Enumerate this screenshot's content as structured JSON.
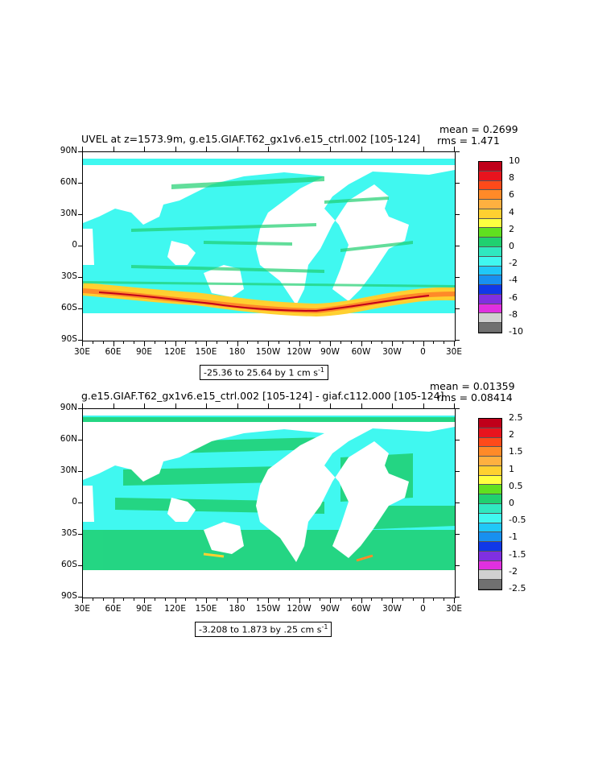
{
  "panels": [
    {
      "title": "UVEL at z=1573.9m, g.e15.GIAF.T62_gx1v6.e15_ctrl.002 [105-124]",
      "mean": "mean = 0.2699",
      "rms": "rms = 1.471",
      "range": "-25.36 to 25.64 by 1 cm s",
      "range_sup": "-1",
      "ylabels": [
        "90N",
        "60N",
        "30N",
        "0",
        "30S",
        "60S",
        "90S"
      ],
      "xlabels": [
        "30E",
        "60E",
        "90E",
        "120E",
        "150E",
        "180",
        "150W",
        "120W",
        "90W",
        "60W",
        "30W",
        "0",
        "30E"
      ],
      "colorbar_labels": [
        "10",
        "8",
        "6",
        "4",
        "2",
        "0",
        "-2",
        "-4",
        "-6",
        "-8",
        "-10"
      ],
      "colorbar_colors": [
        "#c0001a",
        "#e8141e",
        "#ff4a1a",
        "#ff8a28",
        "#ffb040",
        "#ffd030",
        "#ffff40",
        "#60e020",
        "#20d070",
        "#30e8c0",
        "#40f8f0",
        "#20c8f8",
        "#1890f0",
        "#1038e8",
        "#8030e0",
        "#e030e0",
        "#d0d0d0",
        "#707070"
      ]
    },
    {
      "title": "g.e15.GIAF.T62_gx1v6.e15_ctrl.002 [105-124] - giaf.c112.000 [105-124]",
      "mean": "mean = 0.01359",
      "rms": "rms = 0.08414",
      "range": "-3.208 to 1.873 by .25 cm s",
      "range_sup": "-1",
      "ylabels": [
        "90N",
        "60N",
        "30N",
        "0",
        "30S",
        "60S",
        "90S"
      ],
      "xlabels": [
        "30E",
        "60E",
        "90E",
        "120E",
        "150E",
        "180",
        "150W",
        "120W",
        "90W",
        "60W",
        "30W",
        "0",
        "30E"
      ],
      "colorbar_labels": [
        "2.5",
        "2",
        "1.5",
        "1",
        "0.5",
        "0",
        "-0.5",
        "-1",
        "-1.5",
        "-2",
        "-2.5"
      ],
      "colorbar_colors": [
        "#c0001a",
        "#e8141e",
        "#ff4a1a",
        "#ff8a28",
        "#ffb040",
        "#ffd030",
        "#ffff40",
        "#60e020",
        "#20d070",
        "#30e8c0",
        "#40f8f0",
        "#20c8f8",
        "#1890f0",
        "#1038e8",
        "#8030e0",
        "#e030e0",
        "#d0d0d0",
        "#707070"
      ]
    }
  ]
}
